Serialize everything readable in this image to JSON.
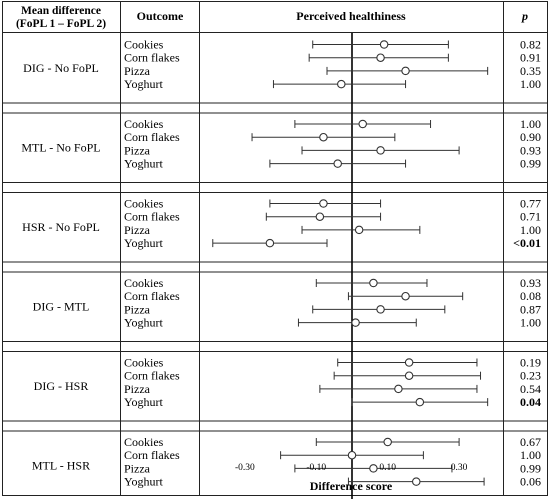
{
  "headers": {
    "comparison_line1": "Mean difference",
    "comparison_line2": "(FoPL 1 – FoPL 2)",
    "outcome": "Outcome",
    "plot": "Perceived healthiness",
    "p": "p"
  },
  "chart_data": {
    "type": "forest",
    "title": "Perceived healthiness",
    "xlabel": "Difference score",
    "xticks": [
      "-0.30",
      "-0.10",
      "0.10",
      "0.30"
    ],
    "xtick_values": [
      -0.3,
      -0.1,
      0.1,
      0.3
    ],
    "xlim": [
      -0.4,
      0.41
    ],
    "reference_line": 0,
    "groups": [
      {
        "comparison": "DIG - No FoPL",
        "rows": [
          {
            "outcome": "Cookies",
            "estimate": 0.09,
            "ci": [
              -0.11,
              0.27
            ],
            "p": "0.82",
            "bold": false
          },
          {
            "outcome": "Corn flakes",
            "estimate": 0.08,
            "ci": [
              -0.12,
              0.27
            ],
            "p": "0.91",
            "bold": false
          },
          {
            "outcome": "Pizza",
            "estimate": 0.15,
            "ci": [
              -0.07,
              0.38
            ],
            "p": "0.35",
            "bold": false
          },
          {
            "outcome": "Yoghurt",
            "estimate": -0.03,
            "ci": [
              -0.22,
              0.15
            ],
            "p": "1.00",
            "bold": false
          }
        ]
      },
      {
        "comparison": "MTL - No FoPL",
        "rows": [
          {
            "outcome": "Cookies",
            "estimate": 0.03,
            "ci": [
              -0.16,
              0.22
            ],
            "p": "1.00",
            "bold": false
          },
          {
            "outcome": "Corn flakes",
            "estimate": -0.08,
            "ci": [
              -0.28,
              0.12
            ],
            "p": "0.90",
            "bold": false
          },
          {
            "outcome": "Pizza",
            "estimate": 0.08,
            "ci": [
              -0.14,
              0.3
            ],
            "p": "0.93",
            "bold": false
          },
          {
            "outcome": "Yoghurt",
            "estimate": -0.04,
            "ci": [
              -0.23,
              0.15
            ],
            "p": "0.99",
            "bold": false
          }
        ]
      },
      {
        "comparison": "HSR - No FoPL",
        "rows": [
          {
            "outcome": "Cookies",
            "estimate": -0.08,
            "ci": [
              -0.23,
              0.08
            ],
            "p": "0.77",
            "bold": false
          },
          {
            "outcome": "Corn flakes",
            "estimate": -0.09,
            "ci": [
              -0.24,
              0.08
            ],
            "p": "0.71",
            "bold": false
          },
          {
            "outcome": "Pizza",
            "estimate": 0.02,
            "ci": [
              -0.14,
              0.19
            ],
            "p": "1.00",
            "bold": false
          },
          {
            "outcome": "Yoghurt",
            "estimate": -0.23,
            "ci": [
              -0.39,
              -0.07
            ],
            "p": "<0.01",
            "bold": true
          }
        ]
      },
      {
        "comparison": "DIG - MTL",
        "rows": [
          {
            "outcome": "Cookies",
            "estimate": 0.06,
            "ci": [
              -0.1,
              0.21
            ],
            "p": "0.93",
            "bold": false
          },
          {
            "outcome": "Corn flakes",
            "estimate": 0.15,
            "ci": [
              -0.01,
              0.31
            ],
            "p": "0.08",
            "bold": false
          },
          {
            "outcome": "Pizza",
            "estimate": 0.08,
            "ci": [
              -0.11,
              0.26
            ],
            "p": "0.87",
            "bold": false
          },
          {
            "outcome": "Yoghurt",
            "estimate": 0.01,
            "ci": [
              -0.15,
              0.18
            ],
            "p": "1.00",
            "bold": false
          }
        ]
      },
      {
        "comparison": "DIG - HSR",
        "rows": [
          {
            "outcome": "Cookies",
            "estimate": 0.16,
            "ci": [
              -0.04,
              0.35
            ],
            "p": "0.19",
            "bold": false
          },
          {
            "outcome": "Corn flakes",
            "estimate": 0.16,
            "ci": [
              -0.05,
              0.36
            ],
            "p": "0.23",
            "bold": false
          },
          {
            "outcome": "Pizza",
            "estimate": 0.13,
            "ci": [
              -0.09,
              0.35
            ],
            "p": "0.54",
            "bold": false
          },
          {
            "outcome": "Yoghurt",
            "estimate": 0.19,
            "ci": [
              0.0,
              0.38
            ],
            "p": "0.04",
            "bold": true
          }
        ]
      },
      {
        "comparison": "MTL - HSR",
        "rows": [
          {
            "outcome": "Cookies",
            "estimate": 0.1,
            "ci": [
              -0.1,
              0.3
            ],
            "p": "0.67",
            "bold": false
          },
          {
            "outcome": "Corn flakes",
            "estimate": 0.0,
            "ci": [
              -0.2,
              0.2
            ],
            "p": "1.00",
            "bold": false
          },
          {
            "outcome": "Pizza",
            "estimate": 0.06,
            "ci": [
              -0.16,
              0.28
            ],
            "p": "0.99",
            "bold": false
          },
          {
            "outcome": "Yoghurt",
            "estimate": 0.18,
            "ci": [
              -0.01,
              0.37
            ],
            "p": "0.06",
            "bold": false
          }
        ]
      }
    ]
  }
}
